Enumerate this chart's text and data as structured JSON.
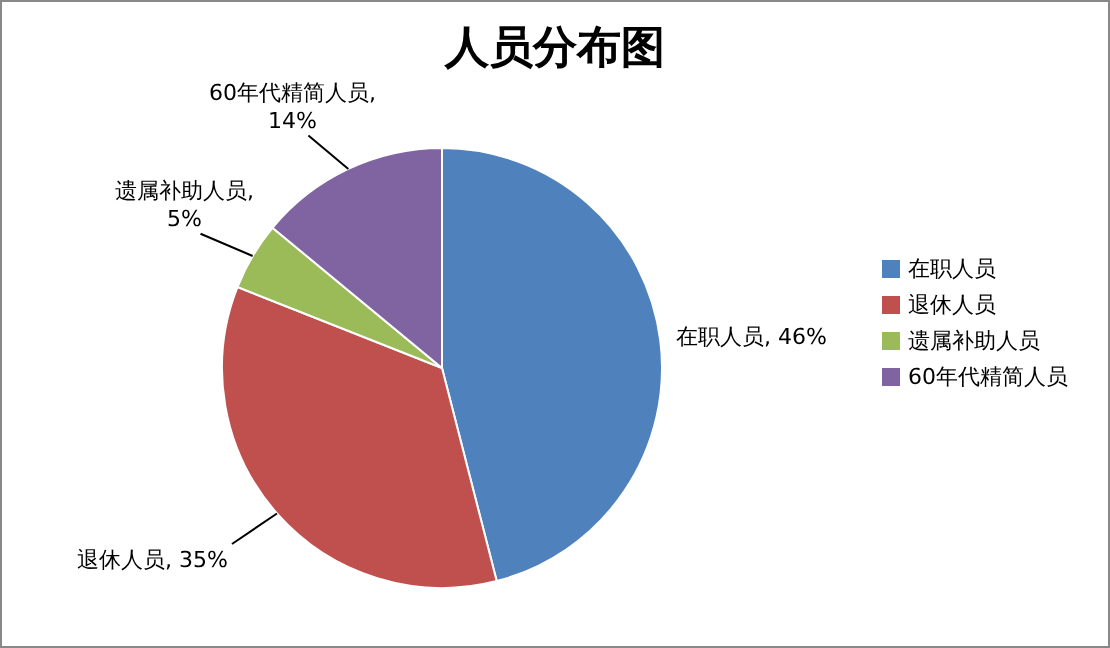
{
  "chart_data": {
    "type": "pie",
    "title": "人员分布图",
    "categories": [
      "在职人员",
      "退休人员",
      "遗属补助人员",
      "60年代精简人员"
    ],
    "values": [
      46,
      35,
      5,
      14
    ],
    "value_labels": [
      "在职人员, 46%",
      "退休人员, 35%",
      "遗属补助人员, 5%",
      "60年代精简人员, 14%"
    ],
    "colors": [
      "#4f81bd",
      "#c0504d",
      "#9bbb59",
      "#8064a2"
    ],
    "legend": "right"
  }
}
